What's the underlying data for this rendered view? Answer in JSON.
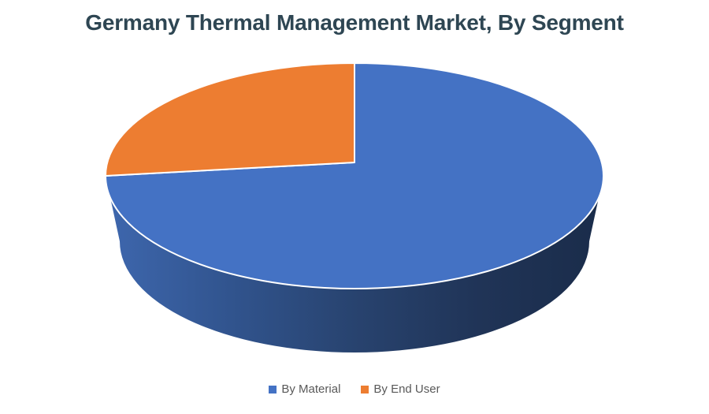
{
  "page": {
    "background_color": "#ffffff"
  },
  "header": {
    "title": "Germany Thermal Management Market, By Segment",
    "title_color": "#2e4653"
  },
  "chart_data": {
    "type": "pie",
    "is_3d": true,
    "title": "Germany Thermal Management Market, By Segment",
    "legend_position": "bottom",
    "legend_text_color": "#595959",
    "slice_border_color": "#ffffff",
    "series": [
      {
        "name": "By Material",
        "value": 75,
        "color": "#4472C4"
      },
      {
        "name": "By End User",
        "value": 25,
        "color": "#ED7D31"
      }
    ],
    "depth_gradient": [
      "#3E67AE",
      "#31548E",
      "#28436F",
      "#203457",
      "#1A2C4A"
    ]
  }
}
